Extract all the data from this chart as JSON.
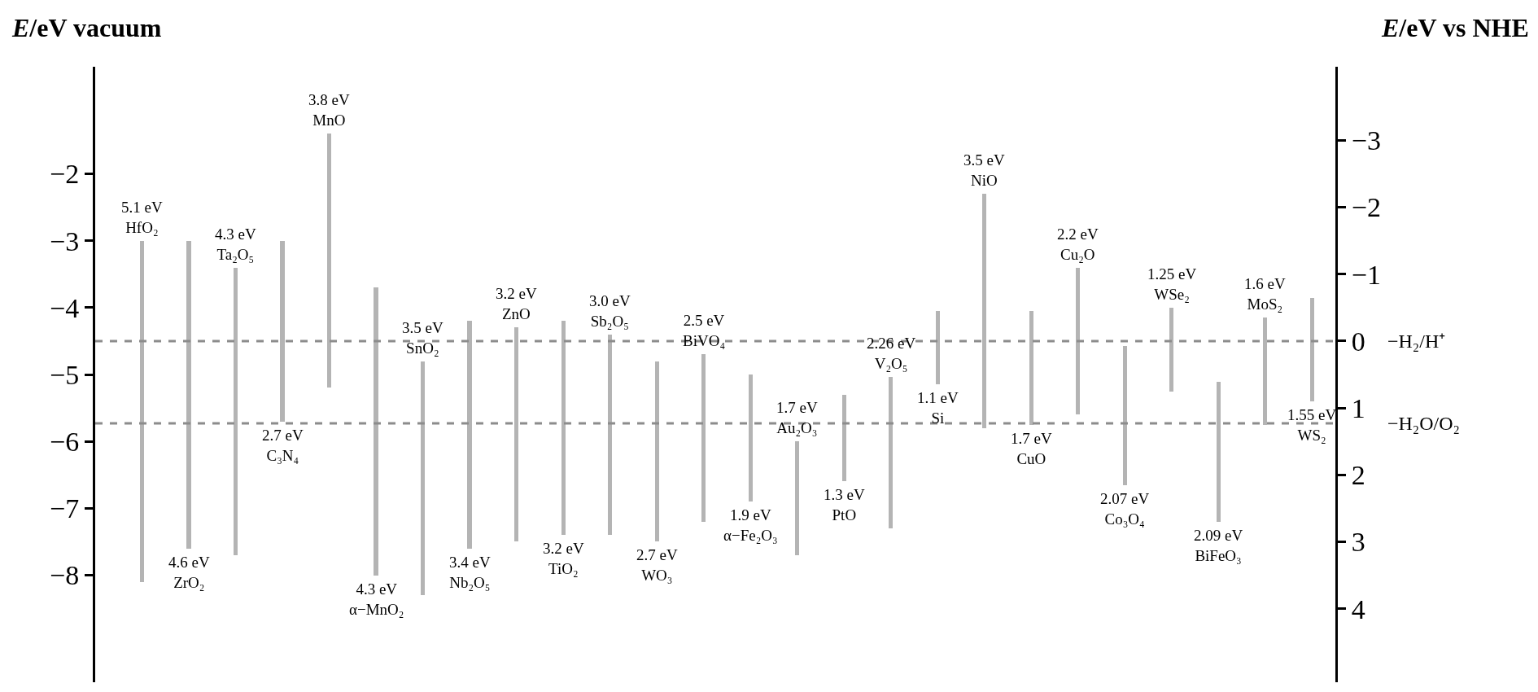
{
  "chart_data": {
    "type": "bar",
    "ylabel": "E/eV vacuum",
    "y2label": "E/eV vs NHE",
    "categories": [
      "HfO₂",
      "ZrO₂",
      "Ta₂O₅",
      "C₃N₄",
      "MnO",
      "α−MnO₂",
      "SnO₂",
      "Nb₂O₅",
      "ZnO",
      "TiO₂",
      "Sb₂O₅",
      "WO₃",
      "BiVO₄",
      "α−Fe₂O₃",
      "Au₂O₃",
      "PtO",
      "V₂O₅",
      "Si",
      "NiO",
      "CuO",
      "Cu₂O",
      "Co₃O₄",
      "WSe₂",
      "BiFeO₃",
      "MoS₂",
      "WS₂"
    ],
    "values": [
      5.1,
      4.6,
      4.3,
      2.7,
      3.8,
      4.3,
      3.5,
      3.4,
      3.2,
      3.2,
      3.0,
      2.7,
      2.5,
      1.9,
      1.7,
      1.3,
      2.26,
      1.1,
      3.5,
      1.7,
      2.2,
      2.07,
      1.25,
      2.09,
      1.6,
      1.55
    ],
    "base": [
      -8.1,
      -7.6,
      -7.7,
      -5.7,
      -5.2,
      -8.0,
      -8.3,
      -7.6,
      -7.5,
      -7.4,
      -7.4,
      -7.5,
      -7.2,
      -6.9,
      -7.7,
      -6.6,
      -7.3,
      -5.15,
      -5.8,
      -5.75,
      -5.6,
      -6.65,
      -5.25,
      -7.2,
      -5.75,
      -5.4
    ],
    "value_labels": [
      "5.1 eV",
      "4.6 eV",
      "4.3 eV",
      "2.7 eV",
      "3.8 eV",
      "4.3 eV",
      "3.5 eV",
      "3.4 eV",
      "3.2 eV",
      "3.2 eV",
      "3.0 eV",
      "2.7 eV",
      "2.5 eV",
      "1.9 eV",
      "1.7 eV",
      "1.3 eV",
      "2.26 eV",
      "1.1 eV",
      "3.5 eV",
      "1.7 eV",
      "2.2 eV",
      "2.07 eV",
      "1.25 eV",
      "2.09 eV",
      "1.6 eV",
      "1.55 eV"
    ],
    "color": "#b4b4b4",
    "ylim": [
      -9.6,
      -0.4
    ],
    "yticks": [
      {
        "value": -2,
        "label": "−2"
      },
      {
        "value": -3,
        "label": "−3"
      },
      {
        "value": -4,
        "label": "−4"
      },
      {
        "value": -5,
        "label": "−5"
      },
      {
        "value": -6,
        "label": "−6"
      },
      {
        "value": -7,
        "label": "−7"
      },
      {
        "value": -8,
        "label": "−8"
      }
    ],
    "y2lim": [
      5.1,
      -4.1
    ],
    "y2ticks": [
      {
        "value": -3,
        "label": "−3"
      },
      {
        "value": -2,
        "label": "−2"
      },
      {
        "value": -1,
        "label": "−1"
      },
      0,
      1,
      2,
      3,
      4
    ],
    "ref_lines": [
      {
        "axis": "y2",
        "value": 0,
        "label": "−H₂/H⁺",
        "color": "#8c8c8c",
        "line_style": "dashed"
      },
      {
        "axis": "y2",
        "value": 1.23,
        "label": "−H₂O/O₂",
        "color": "#8c8c8c",
        "line_style": "dashed"
      }
    ],
    "tick_labels": "y",
    "grid": false,
    "legend": false
  }
}
